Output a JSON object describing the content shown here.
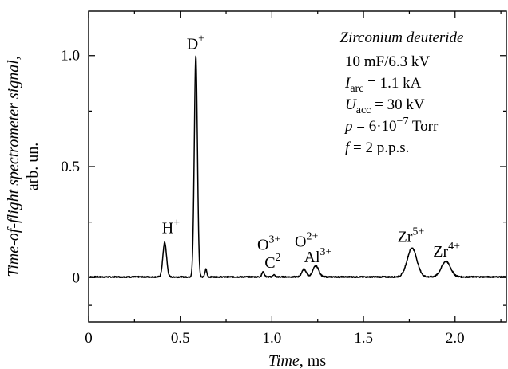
{
  "chart_data": {
    "type": "line",
    "title": "",
    "xlabel": {
      "main": "Time",
      "unit": ", ms"
    },
    "ylabel": {
      "main": "Time-of-flight spectrometer signal,",
      "unit": "arb. un."
    },
    "xlim": [
      0,
      2.28
    ],
    "ylim": [
      -0.2,
      1.2
    ],
    "x_ticks": [
      {
        "value": 0,
        "label": "0"
      },
      {
        "value": 0.5,
        "label": "0.5"
      },
      {
        "value": 1.0,
        "label": "1.0"
      },
      {
        "value": 1.5,
        "label": "1.5"
      },
      {
        "value": 2.0,
        "label": "2.0"
      }
    ],
    "y_ticks": [
      {
        "value": 0,
        "label": "0"
      },
      {
        "value": 0.5,
        "label": "0.5"
      },
      {
        "value": 1.0,
        "label": "1.0"
      }
    ],
    "grid": false,
    "series": [
      {
        "baseline": 0.003,
        "noise": 0.003,
        "peaks": [
          {
            "x": 0.415,
            "height": 0.155,
            "width": 0.01
          },
          {
            "x": 0.585,
            "height": 0.995,
            "width": 0.0085
          },
          {
            "x": 0.64,
            "height": 0.035,
            "width": 0.005
          },
          {
            "x": 0.952,
            "height": 0.022,
            "width": 0.007
          },
          {
            "x": 1.01,
            "height": 0.01,
            "width": 0.006
          },
          {
            "x": 1.175,
            "height": 0.035,
            "width": 0.012
          },
          {
            "x": 1.24,
            "height": 0.05,
            "width": 0.016
          },
          {
            "x": 1.765,
            "height": 0.13,
            "width": 0.026
          },
          {
            "x": 1.95,
            "height": 0.07,
            "width": 0.025
          }
        ]
      }
    ],
    "peak_labels": [
      {
        "ion": "H",
        "charge": "+",
        "x": 0.4,
        "y": 0.2
      },
      {
        "ion": "D",
        "charge": "+",
        "x": 0.535,
        "y": 1.03
      },
      {
        "ion": "O",
        "charge": "3+",
        "x": 0.92,
        "y": 0.125
      },
      {
        "ion": "O",
        "charge": "2+",
        "x": 1.125,
        "y": 0.14
      },
      {
        "ion": "C",
        "charge": "2+",
        "x": 0.96,
        "y": 0.045
      },
      {
        "ion": "Al",
        "charge": "3+",
        "x": 1.175,
        "y": 0.07
      },
      {
        "ion": "Zr",
        "charge": "5+",
        "x": 1.685,
        "y": 0.16
      },
      {
        "ion": "Zr",
        "charge": "4+",
        "x": 1.88,
        "y": 0.095
      }
    ],
    "annotation": {
      "material": "Zirconium deuteride",
      "params": [
        {
          "lead": "10 mF/6.3 kV",
          "sym": "",
          "sub": "",
          "rest": "",
          "sup": "",
          "tail": ""
        },
        {
          "lead": "",
          "sym": "I",
          "sub": "arc",
          "rest": " = 1.1 kA",
          "sup": "",
          "tail": ""
        },
        {
          "lead": "",
          "sym": "U",
          "sub": "acc",
          "rest": " = 30 kV",
          "sup": "",
          "tail": ""
        },
        {
          "lead": "",
          "sym": "p",
          "sub": "",
          "rest": " = 6·10",
          "sup": "−7",
          "tail": " Torr"
        },
        {
          "lead": "",
          "sym": "f",
          "sub": "",
          "rest": " = 2 p.p.s.",
          "sup": "",
          "tail": ""
        }
      ]
    }
  }
}
